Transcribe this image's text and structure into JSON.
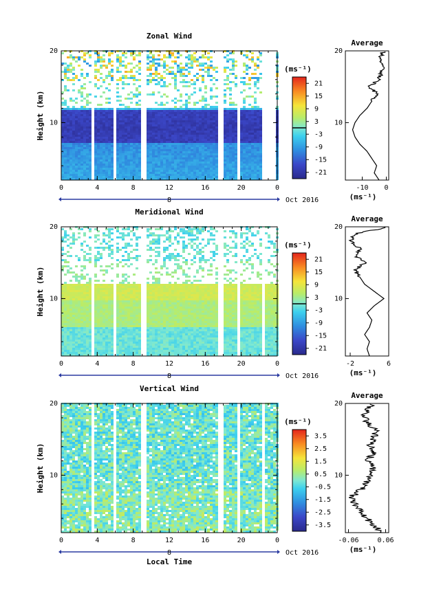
{
  "chart_data": [
    {
      "type": "heatmap",
      "title": "Zonal Wind",
      "ylabel": "Height (km)",
      "xticks": [
        "0",
        "4",
        "8",
        "12",
        "16",
        "20",
        "0"
      ],
      "yticks": [
        "20",
        "10"
      ],
      "date_day_label": "8",
      "date_month_label": "Oct 2016",
      "ylim": [
        2,
        20
      ],
      "xlim": [
        0,
        24
      ],
      "colorbar": {
        "unit": "(ms⁻¹)",
        "ticks": [
          "21",
          "15",
          "9",
          "3",
          "-3",
          "-9",
          "-15",
          "-21"
        ],
        "range": [
          -24,
          24
        ],
        "zero_line": 0
      },
      "profile": {
        "title": "Average",
        "xticks": [
          "-10",
          "0"
        ],
        "xlabel": "(ms⁻¹)",
        "xlim": [
          -17,
          1
        ],
        "yticks": [
          "20",
          "10"
        ],
        "height_km": [
          2,
          3,
          4,
          5,
          6,
          7,
          8,
          9,
          10,
          11,
          12,
          13,
          14,
          15,
          16,
          17,
          18,
          19,
          20
        ],
        "value": [
          -3,
          -5,
          -4,
          -6,
          -8,
          -11,
          -13,
          -14,
          -13,
          -11,
          -8,
          -6,
          -4,
          -7,
          -3,
          -2,
          -1,
          -3,
          -1
        ]
      }
    },
    {
      "type": "heatmap",
      "title": "Meridional Wind",
      "ylabel": "Height (km)",
      "xticks": [
        "0",
        "4",
        "8",
        "12",
        "16",
        "20",
        "0"
      ],
      "yticks": [
        "20",
        "10"
      ],
      "date_day_label": "8",
      "date_month_label": "Oct 2016",
      "ylim": [
        2,
        20
      ],
      "xlim": [
        0,
        24
      ],
      "colorbar": {
        "unit": "(ms⁻¹)",
        "ticks": [
          "21",
          "15",
          "9",
          "3",
          "-3",
          "-9",
          "-15",
          "-21"
        ],
        "range": [
          -24,
          24
        ],
        "zero_line": 0
      },
      "profile": {
        "title": "Average",
        "xticks": [
          "-2",
          "6"
        ],
        "xlabel": "(ms⁻¹)",
        "xlim": [
          -3,
          6
        ],
        "yticks": [
          "20",
          "10"
        ],
        "height_km": [
          2,
          3,
          4,
          5,
          6,
          7,
          8,
          9,
          10,
          11,
          12,
          13,
          14,
          15,
          16,
          17,
          18,
          19,
          20
        ],
        "value": [
          2,
          1.5,
          2,
          1,
          2,
          2.5,
          1.5,
          3,
          5,
          3,
          1,
          0,
          -1,
          1,
          -1,
          0,
          -2,
          -1,
          6
        ]
      }
    },
    {
      "type": "heatmap",
      "title": "Vertical Wind",
      "ylabel": "Height (km)",
      "xlabel": "Local Time",
      "xticks": [
        "0",
        "4",
        "8",
        "12",
        "16",
        "20",
        "0"
      ],
      "yticks": [
        "20",
        "10"
      ],
      "date_day_label": "8",
      "date_month_label": "Oct 2016",
      "ylim": [
        2,
        20
      ],
      "xlim": [
        0,
        24
      ],
      "colorbar": {
        "unit": "(ms⁻¹)",
        "ticks": [
          "3.5",
          "2.5",
          "1.5",
          "0.5",
          "-0.5",
          "-1.5",
          "-2.5",
          "-3.5"
        ],
        "range": [
          -4,
          4
        ]
      },
      "profile": {
        "title": "Average",
        "xticks": [
          "-0.06",
          "0.06"
        ],
        "xlabel": "(ms⁻¹)",
        "xlim": [
          -0.07,
          0.07
        ],
        "yticks": [
          "20",
          "10"
        ],
        "height_km": [
          2,
          3,
          4,
          5,
          6,
          7,
          8,
          9,
          10,
          11,
          12,
          13,
          14,
          15,
          16,
          17,
          18,
          19,
          20
        ],
        "value": [
          0.05,
          0.02,
          0.0,
          -0.02,
          -0.04,
          -0.05,
          -0.02,
          0.0,
          0.01,
          0.02,
          0.0,
          0.02,
          0.01,
          0.02,
          0.03,
          0.01,
          -0.01,
          0.0,
          0.02
        ]
      }
    }
  ]
}
